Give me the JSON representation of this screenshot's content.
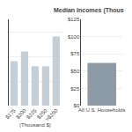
{
  "chart_data": [
    {
      "type": "bar",
      "categories": [
        "$175",
        "$200",
        "$225",
        "$250",
        ">$250"
      ],
      "values": [
        18,
        22,
        16,
        16,
        28
      ],
      "color": "#c5cfd8",
      "xlabel": "(Thousand $)",
      "ylim": [
        0,
        35
      ],
      "yticks": [
        10,
        20,
        30
      ],
      "grid": true,
      "tick_labels": "x"
    },
    {
      "type": "bar",
      "title": "Median Incomes (Thous",
      "categories": [
        "All U.S. Households"
      ],
      "values": [
        62
      ],
      "color": "#8c9ba5",
      "ylim": [
        0,
        125
      ],
      "yticks": [
        {
          "value": 0,
          "label": "$0"
        },
        {
          "value": 25,
          "label": "$25"
        },
        {
          "value": 50,
          "label": "$50"
        },
        {
          "value": 75,
          "label": "$75"
        },
        {
          "value": 100,
          "label": "$100"
        },
        {
          "value": 125,
          "label": "$125"
        }
      ],
      "grid": true
    }
  ]
}
